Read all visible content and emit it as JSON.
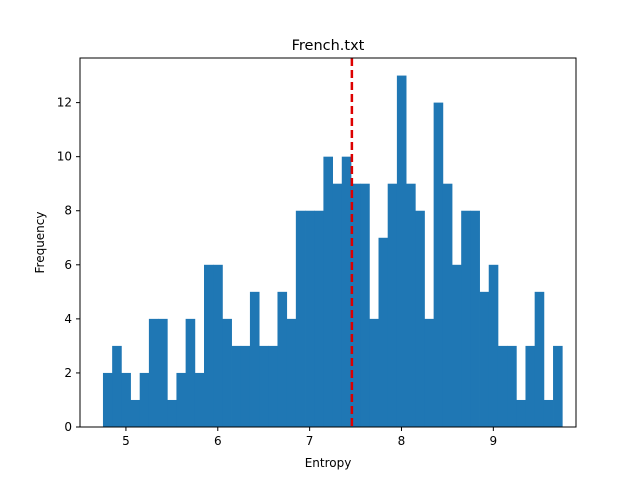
{
  "chart_data": {
    "type": "bar",
    "title": "French.txt",
    "xlabel": "Entropy",
    "ylabel": "Frequency",
    "xlim": [
      4.5,
      9.9
    ],
    "ylim": [
      0,
      13.65
    ],
    "xticks": [
      5,
      6,
      7,
      8,
      9
    ],
    "yticks": [
      0,
      2,
      4,
      6,
      8,
      10,
      12
    ],
    "bin_start": 4.75,
    "bin_width": 0.1,
    "values": [
      2,
      3,
      2,
      1,
      2,
      4,
      4,
      1,
      2,
      4,
      2,
      6,
      6,
      4,
      3,
      3,
      5,
      3,
      3,
      5,
      4,
      8,
      8,
      8,
      10,
      9,
      10,
      9,
      9,
      4,
      7,
      9,
      13,
      9,
      8,
      4,
      12,
      9,
      6,
      8,
      8,
      5,
      6,
      3,
      3,
      1,
      3,
      5,
      1,
      3
    ],
    "reference_line": {
      "x": 7.46,
      "color": "#dd0000",
      "style": "dashed"
    },
    "bar_color": "#1f77b4",
    "grid": false
  }
}
